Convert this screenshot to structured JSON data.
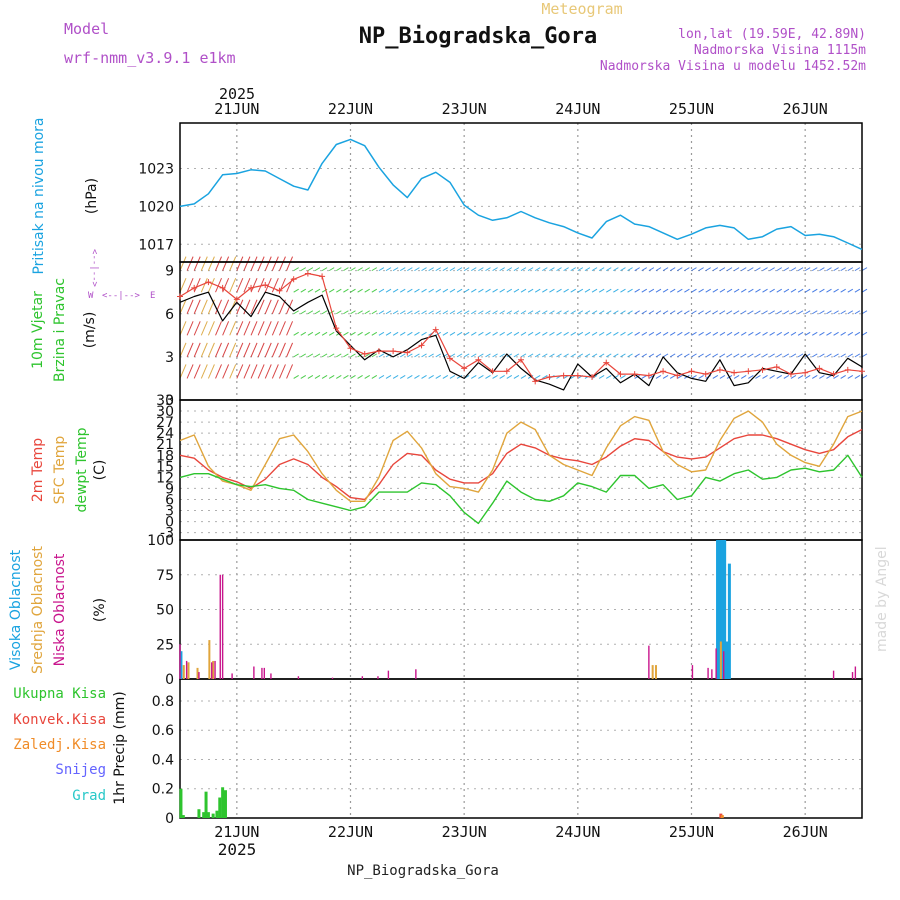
{
  "header": {
    "supertitle": "Meteogram",
    "title": "NP_Biogradska_Gora",
    "model_label": "Model",
    "model_name": "wrf-nmm_v3.9.1 e1km",
    "coords": "lon,lat (19.59E, 42.89N)",
    "elevation": "Nadmorska Visina 1115m",
    "model_elevation": "Nadmorska Visina u modelu 1452.52m",
    "footer": "NP_Biogradska_Gora",
    "watermark": "made by Angel",
    "year": "2025"
  },
  "time_axis": {
    "day_labels": [
      "21JUN",
      "22JUN",
      "23JUN",
      "24JUN",
      "25JUN",
      "26JUN"
    ],
    "start_hour": -12,
    "end_hour": 132
  },
  "panels": {
    "pressure": {
      "ylabel": "Pritisak na nivou mora",
      "unit": "(hPa)",
      "ticks": [
        "1023",
        "1020",
        "1017"
      ]
    },
    "wind": {
      "ylabel1": "10m Vjetar",
      "ylabel2": "Brzina i Pravac",
      "unit": "(m/s)",
      "ticks": [
        "9",
        "6",
        "3",
        "0"
      ],
      "compass_n": "N",
      "compass_e": "E",
      "compass_w": "W",
      "compass_s": "S"
    },
    "temperature": {
      "ylabel1": "2m Temp",
      "ylabel2": "SFC Temp",
      "ylabel3": "dewpt Temp",
      "unit": "(C)",
      "ticks": [
        "33",
        "30",
        "27",
        "24",
        "21",
        "18",
        "15",
        "12",
        "9",
        "6",
        "3",
        "0",
        "-3"
      ]
    },
    "clouds": {
      "ylabel1": "Visoka Oblacnost",
      "ylabel2": "Srednja Oblacnost",
      "ylabel3": "Niska Oblacnost",
      "unit": "(%)",
      "ticks": [
        "100",
        "75",
        "50",
        "25",
        "0"
      ]
    },
    "precip": {
      "labels": [
        "Ukupna Kisa",
        "Konvek.Kisa",
        "Zaledj.Kisa",
        "Snijeg",
        "Grad"
      ],
      "unit": "1hr Precip (mm)",
      "ticks": [
        "0.8",
        "0.6",
        "0.4",
        "0.2",
        "0"
      ]
    }
  },
  "colors": {
    "pressure": "#1aa3e0",
    "t2m": "#e8463c",
    "tsfc": "#e0a53c",
    "dewpt": "#2ec42e",
    "high_cloud": "#1aa3e0",
    "mid_cloud": "#e0a53c",
    "low_cloud": "#c8148c",
    "rain": "#2ec42e",
    "conv_rain": "#e8463c",
    "freezing": "#f08c28",
    "snow": "#6464ff",
    "hail": "#28c8c8",
    "title_purple": "#b050c8",
    "title_orange": "#e8c878"
  },
  "chart_data": [
    {
      "type": "line",
      "title": "Pritisak na nivou mora",
      "ylabel": "hPa",
      "ylim": [
        1015.6,
        1026.6
      ],
      "x_hours": [
        -12,
        -9,
        -6,
        -3,
        0,
        3,
        6,
        9,
        12,
        15,
        18,
        21,
        24,
        27,
        30,
        33,
        36,
        39,
        42,
        45,
        48,
        51,
        54,
        57,
        60,
        63,
        66,
        69,
        72,
        75,
        78,
        81,
        84,
        87,
        90,
        93,
        96,
        99,
        102,
        105,
        108,
        111,
        114,
        117,
        120,
        123,
        126,
        129,
        132
      ],
      "series": [
        {
          "values": [
            1020.0,
            1020.2,
            1021.0,
            1022.5,
            1022.6,
            1022.9,
            1022.8,
            1022.2,
            1021.6,
            1021.3,
            1023.4,
            1024.9,
            1025.3,
            1024.8,
            1023.1,
            1021.7,
            1020.7,
            1022.2,
            1022.7,
            1021.9,
            1020.1,
            1019.3,
            1018.9,
            1019.1,
            1019.6,
            1019.1,
            1018.7,
            1018.4,
            1017.9,
            1017.5,
            1018.8,
            1019.3,
            1018.6,
            1018.4,
            1017.9,
            1017.4,
            1017.8,
            1018.3,
            1018.5,
            1018.3,
            1017.4,
            1017.6,
            1018.2,
            1018.4,
            1017.7,
            1017.8,
            1017.6,
            1017.1,
            1016.6
          ]
        }
      ]
    },
    {
      "type": "line",
      "title": "10m Vjetar Brzina i Pravac",
      "ylabel": "m/s",
      "ylim": [
        0,
        9.6
      ],
      "x_hours": [
        -12,
        -9,
        -6,
        -3,
        0,
        3,
        6,
        9,
        12,
        15,
        18,
        21,
        24,
        27,
        30,
        33,
        36,
        39,
        42,
        45,
        48,
        51,
        54,
        57,
        60,
        63,
        66,
        69,
        72,
        75,
        78,
        81,
        84,
        87,
        90,
        93,
        96,
        99,
        102,
        105,
        108,
        111,
        114,
        117,
        120,
        123,
        126,
        129,
        132
      ],
      "series": [
        {
          "values": [
            6.8,
            7.2,
            7.5,
            5.5,
            6.8,
            5.8,
            7.5,
            7.2,
            6.2,
            6.8,
            7.3,
            4.8,
            3.8,
            2.8,
            3.5,
            3.0,
            3.5,
            4.2,
            4.5,
            2.0,
            1.5,
            2.6,
            1.9,
            3.2,
            2.2,
            1.4,
            1.1,
            0.7,
            2.5,
            1.6,
            2.2,
            1.2,
            1.8,
            1.0,
            3.0,
            1.9,
            1.5,
            1.3,
            2.8,
            1.0,
            1.2,
            2.2,
            2.0,
            1.8,
            3.2,
            1.9,
            1.7,
            2.9,
            2.3
          ]
        },
        {
          "values": [
            7.2,
            7.8,
            8.2,
            7.8,
            7.0,
            7.8,
            8.0,
            7.6,
            8.4,
            8.8,
            8.6,
            5.0,
            3.6,
            3.2,
            3.4,
            3.4,
            3.3,
            3.8,
            4.9,
            2.9,
            2.2,
            2.8,
            2.0,
            2.0,
            2.8,
            1.3,
            1.6,
            1.7,
            1.7,
            1.6,
            2.6,
            1.8,
            1.8,
            1.7,
            2.0,
            1.7,
            2.0,
            1.8,
            2.1,
            1.9,
            2.0,
            2.1,
            2.3,
            1.8,
            1.9,
            2.2,
            1.8,
            2.1,
            2.0
          ]
        }
      ]
    },
    {
      "type": "line",
      "title": "2m Temp / SFC Temp / dewpt Temp",
      "ylabel": "C",
      "ylim": [
        -5,
        33
      ],
      "x_hours": [
        -12,
        -9,
        -6,
        -3,
        0,
        3,
        6,
        9,
        12,
        15,
        18,
        21,
        24,
        27,
        30,
        33,
        36,
        39,
        42,
        45,
        48,
        51,
        54,
        57,
        60,
        63,
        66,
        69,
        72,
        75,
        78,
        81,
        84,
        87,
        90,
        93,
        96,
        99,
        102,
        105,
        108,
        111,
        114,
        117,
        120,
        123,
        126,
        129,
        132
      ],
      "series": [
        {
          "name": "2m Temp",
          "values": [
            18.0,
            17.2,
            14.0,
            12.0,
            10.8,
            9.0,
            11.5,
            15.5,
            17.0,
            15.5,
            12.0,
            9.5,
            6.5,
            6.0,
            10.0,
            15.5,
            18.5,
            18.0,
            14.0,
            11.5,
            10.5,
            10.5,
            13.0,
            18.5,
            21.0,
            20.0,
            18.0,
            17.0,
            16.5,
            15.5,
            17.5,
            20.5,
            22.5,
            22.0,
            19.0,
            17.5,
            17.0,
            17.5,
            20.0,
            22.5,
            23.5,
            23.5,
            22.5,
            21.0,
            19.5,
            18.5,
            19.5,
            23.0,
            25.0
          ]
        },
        {
          "name": "SFC Temp",
          "values": [
            22.0,
            23.5,
            15.0,
            11.0,
            10.0,
            8.5,
            15.5,
            22.5,
            23.5,
            19.0,
            13.0,
            8.5,
            5.5,
            5.5,
            12.0,
            22.0,
            24.5,
            20.0,
            13.0,
            9.5,
            9.0,
            8.0,
            14.0,
            24.0,
            27.0,
            25.0,
            18.0,
            15.5,
            14.0,
            12.5,
            20.0,
            26.0,
            28.5,
            27.5,
            19.0,
            15.5,
            13.5,
            14.0,
            22.0,
            28.0,
            30.0,
            27.0,
            21.0,
            18.0,
            16.0,
            15.0,
            21.0,
            28.5,
            30.0
          ]
        },
        {
          "name": "dewpt Temp",
          "values": [
            12.0,
            13.0,
            13.0,
            11.5,
            10.0,
            9.5,
            10.0,
            9.0,
            8.5,
            6.0,
            5.0,
            4.0,
            3.0,
            4.0,
            8.0,
            8.0,
            8.0,
            10.5,
            10.0,
            7.0,
            2.5,
            -0.5,
            5.0,
            11.0,
            8.0,
            6.0,
            5.5,
            7.0,
            10.5,
            9.5,
            8.0,
            12.5,
            12.5,
            9.0,
            10.0,
            6.0,
            7.0,
            12.0,
            11.0,
            13.0,
            14.0,
            11.5,
            12.0,
            14.0,
            14.5,
            13.5,
            14.0,
            18.0,
            12.0
          ]
        }
      ]
    },
    {
      "type": "bar",
      "title": "Visoka / Srednja / Niska Oblacnost",
      "ylabel": "%",
      "ylim": [
        0,
        100
      ],
      "series": [
        {
          "name": "Visoka Oblacnost",
          "x_hours": [
            -11.8,
            101.5,
            102.0,
            102.5,
            103.0,
            103.5,
            104.0
          ],
          "values": [
            20,
            100,
            100,
            100,
            100,
            27,
            83
          ]
        },
        {
          "name": "Srednja Oblacnost",
          "x_hours": [
            -11.2,
            -10.2,
            -8.3,
            -5.8,
            -5.0,
            87.8,
            88.5,
            102.2
          ],
          "values": [
            10,
            12,
            8,
            28,
            13,
            10,
            10,
            27
          ]
        },
        {
          "name": "Niska Oblacnost",
          "x_hours": [
            -12.0,
            -10.6,
            -8.0,
            -5.3,
            -4.6,
            -3.5,
            -3.0,
            -1.0,
            3.6,
            5.3,
            5.8,
            7.2,
            13.0,
            20.2,
            26.5,
            29.8,
            32.0,
            37.8,
            87.0,
            96.2,
            99.5,
            100.3,
            101.2,
            102.8,
            126.0,
            130.0,
            130.6
          ],
          "values": [
            25,
            13,
            5,
            12,
            13,
            75,
            75,
            4,
            9,
            8,
            8,
            4,
            2,
            1,
            2,
            2,
            6,
            7,
            24,
            10,
            8,
            7,
            22,
            20,
            6,
            5,
            9
          ]
        }
      ]
    },
    {
      "type": "bar",
      "title": "1hr Precip",
      "ylabel": "mm",
      "ylim": [
        0,
        0.95
      ],
      "series": [
        {
          "name": "Ukupna Kisa",
          "x_hours": [
            -11.8,
            -11.3,
            -8.0,
            -7.0,
            -6.5,
            -6.0,
            -5.0,
            -4.2,
            -3.6,
            -3.0,
            -2.4
          ],
          "values": [
            0.2,
            0.02,
            0.06,
            0.04,
            0.18,
            0.04,
            0.03,
            0.05,
            0.14,
            0.21,
            0.19
          ]
        },
        {
          "name": "Konvek.Kisa",
          "x_hours": [
            102.2
          ],
          "values": [
            0.03
          ]
        },
        {
          "name": "Zaledj.Kisa",
          "x_hours": [
            102.5
          ],
          "values": [
            0.02
          ]
        },
        {
          "name": "Snijeg",
          "x_hours": [],
          "values": []
        },
        {
          "name": "Grad",
          "x_hours": [],
          "values": []
        }
      ]
    }
  ]
}
